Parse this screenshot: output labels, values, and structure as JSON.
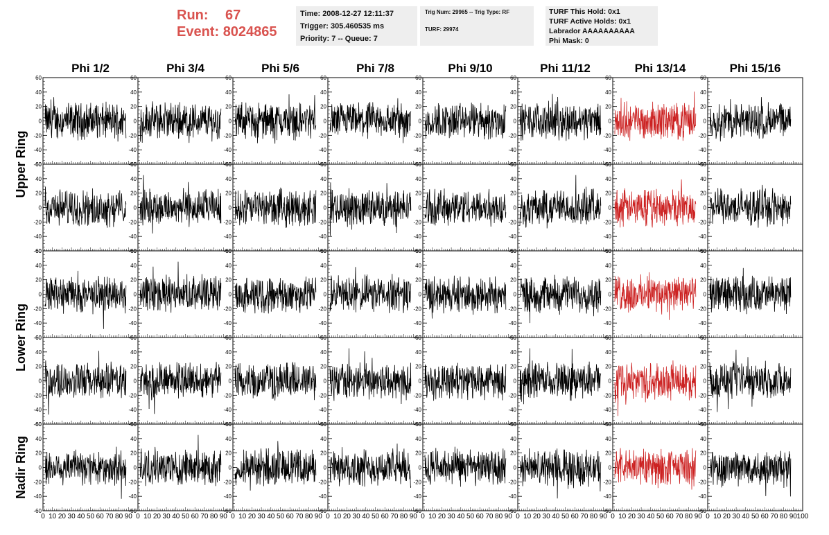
{
  "header": {
    "run_label": "Run:",
    "run_value": "67",
    "event_label": "Event:",
    "event_value": "8024865",
    "time": "Time: 2008-12-27 12:11:37",
    "trigger": "Trigger: 305.460535 ms",
    "priority": "Priority: 7 -- Queue: 7",
    "trig_num": "Trig Num: 29965 -- Trig Type: RF",
    "turf": "TURF: 29974",
    "turf_this_hold": "TURF This Hold: 0x1",
    "turf_active_holds": "TURF Active Holds: 0x1",
    "labrador": "Labrador AAAAAAAAAA",
    "phi_mask": "Phi Mask: 0"
  },
  "chart_data": {
    "type": "line",
    "title": "",
    "columns": [
      "Phi 1/2",
      "Phi 3/4",
      "Phi 5/6",
      "Phi 7/8",
      "Phi 9/10",
      "Phi 11/12",
      "Phi 13/14",
      "Phi 15/16"
    ],
    "ring_labels": [
      {
        "text": "Upper Ring",
        "rows": [
          0,
          1
        ]
      },
      {
        "text": "Lower Ring",
        "rows": [
          2,
          3
        ]
      },
      {
        "text": "Nadir Ring",
        "rows": [
          4,
          4
        ]
      }
    ],
    "rows": 5,
    "ylim": [
      -60,
      60
    ],
    "yticks": [
      -60,
      -40,
      -20,
      0,
      20,
      40,
      60
    ],
    "xlim": [
      0,
      100
    ],
    "xtick_labels": [
      "0",
      "10",
      "20",
      "30",
      "40",
      "50",
      "60",
      "70",
      "80",
      "90",
      "100"
    ],
    "highlight_column": 6,
    "colors": {
      "normal": "#000000",
      "highlight": "#cc2222",
      "header_text": "#d9534f",
      "box_bg": "#eeeeee"
    },
    "waveform_amplitude_range": {
      "typical": [
        -30,
        30
      ],
      "max": [
        -60,
        45
      ]
    }
  }
}
